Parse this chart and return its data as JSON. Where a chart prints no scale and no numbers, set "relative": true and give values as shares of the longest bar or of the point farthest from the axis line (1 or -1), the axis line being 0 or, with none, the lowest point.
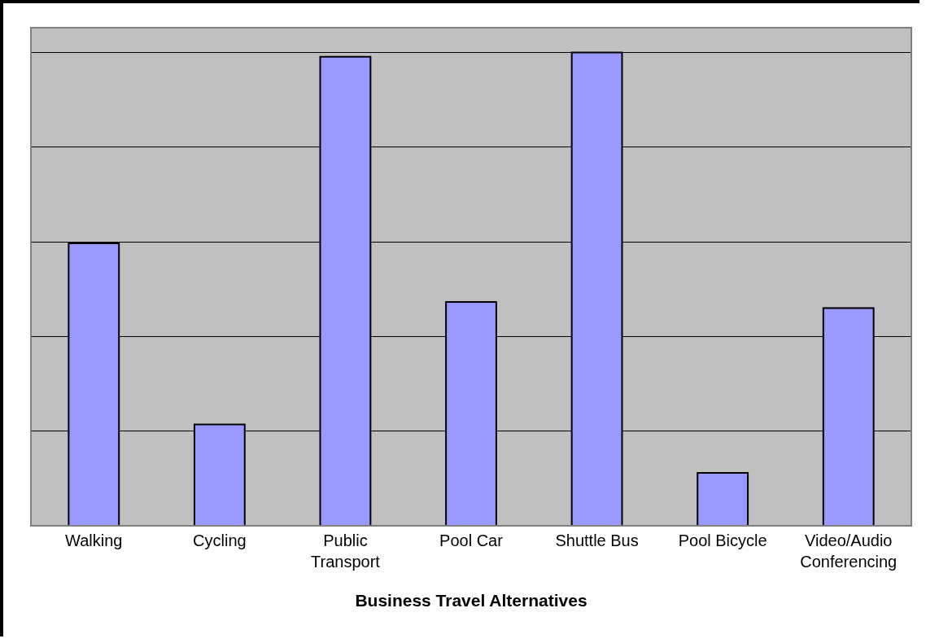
{
  "chart_data": {
    "type": "bar",
    "xlabel": "Business Travel Alternatives",
    "relative": true,
    "grid": "y",
    "categories": [
      "Walking",
      "Cycling",
      "Public Transport",
      "Pool Car",
      "Shuttle Bus",
      "Pool Bicycle",
      "Video/Audio Conferencing"
    ],
    "values": [
      0.597,
      0.214,
      0.991,
      0.473,
      1,
      0.112,
      0.46
    ],
    "color": "#9999ff"
  }
}
